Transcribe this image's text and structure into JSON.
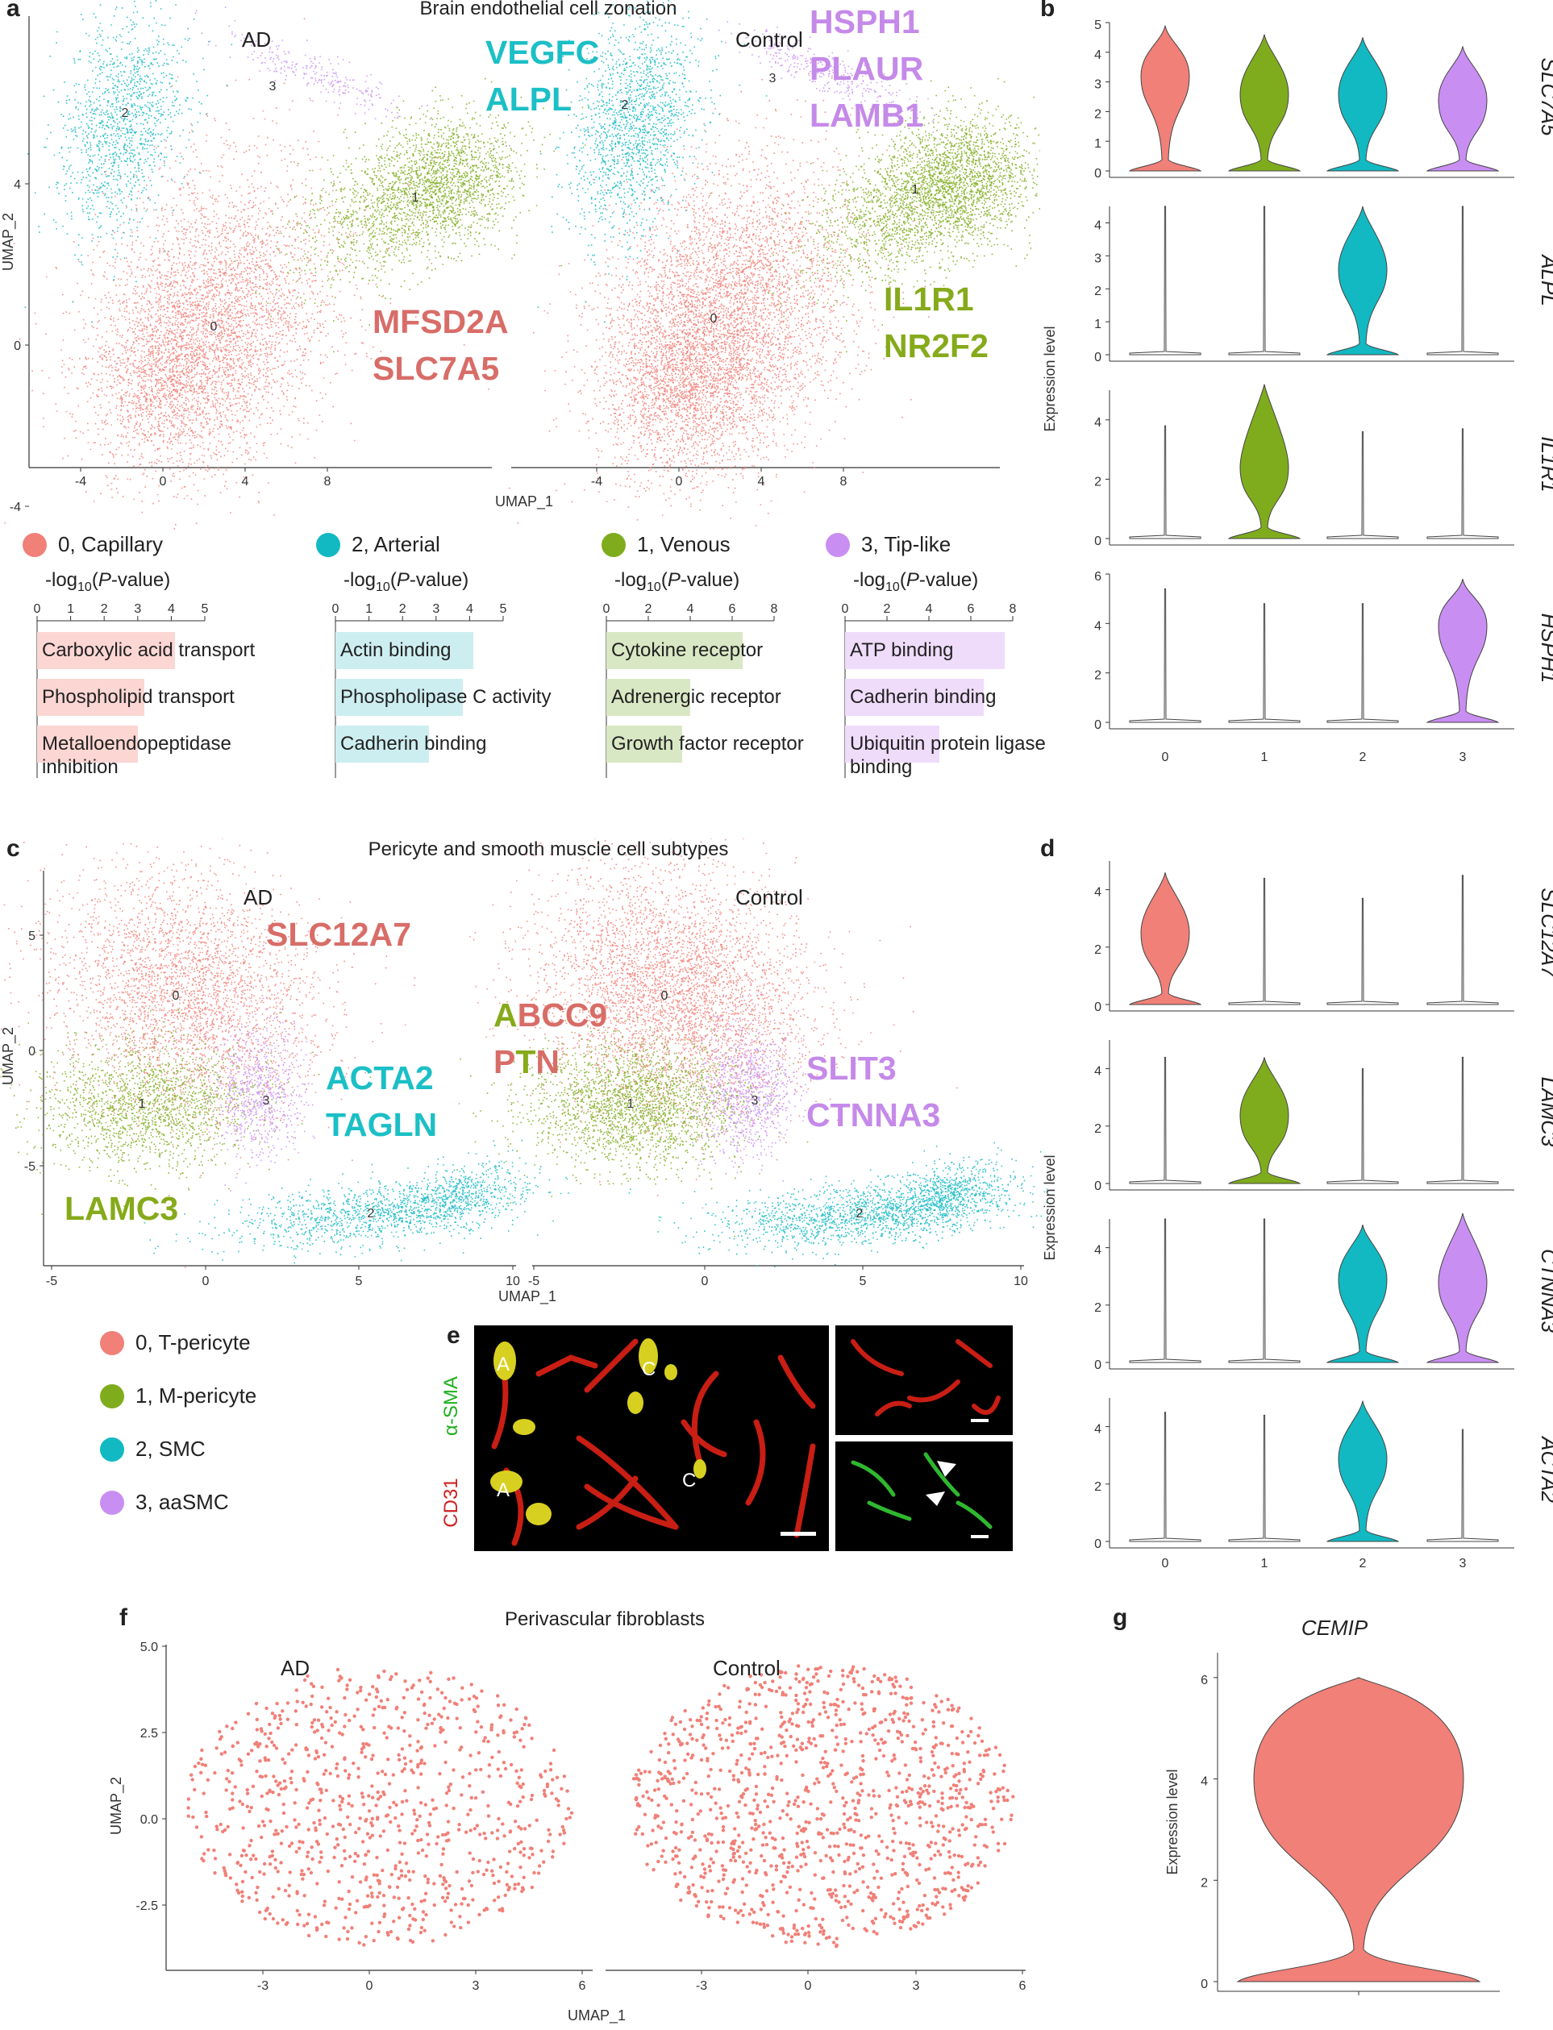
{
  "colors": {
    "c0": "#f08078",
    "c1": "#7fac1d",
    "c2": "#12b9c2",
    "c3": "#c98ef2",
    "c0_text": "#d86d68",
    "c1_text": "#86aa1a",
    "c2_text": "#1cbfc6",
    "c3_text": "#c58ae9"
  },
  "panel_a": {
    "label": "a",
    "title": "Brain endothelial cell zonation",
    "conditions": [
      "AD",
      "Control"
    ],
    "xlabel": "UMAP_1",
    "ylabel": "UMAP_2",
    "xticks": [
      "-4",
      "0",
      "4",
      "8"
    ],
    "yticks": [
      "4",
      "0",
      "-4"
    ],
    "clusters": [
      "0",
      "1",
      "2",
      "3"
    ],
    "markers": {
      "c2": [
        "VEGFC",
        "ALPL"
      ],
      "c3": [
        "HSPH1",
        "PLAUR",
        "LAMB1"
      ],
      "c0": [
        "MFSD2A",
        "SLC7A5"
      ],
      "c1": [
        "IL1R1",
        "NR2F2"
      ]
    },
    "legend": [
      "0, Capillary",
      "2, Arterial",
      "1, Venous",
      "3, Tip-like"
    ],
    "go_axis_prefix": "-log",
    "go_axis_sub": "10",
    "go_axis_open": "(",
    "go_axis_P": "P",
    "go_axis_suffix": "-value)",
    "go": [
      {
        "ticks": [
          "0",
          "1",
          "2",
          "3",
          "4",
          "5"
        ],
        "max": 5,
        "terms": [
          {
            "label": "Carboxylic acid transport",
            "value": 4.1
          },
          {
            "label": "Phospholipid transport",
            "value": 3.2
          },
          {
            "label": "Metalloendopeptidase inhibition",
            "value": 3.0
          }
        ]
      },
      {
        "ticks": [
          "0",
          "1",
          "2",
          "3",
          "4",
          "5"
        ],
        "max": 5,
        "terms": [
          {
            "label": "Actin binding",
            "value": 4.1
          },
          {
            "label": "Phospholipase C activity",
            "value": 3.8
          },
          {
            "label": "Cadherin binding",
            "value": 2.8
          }
        ]
      },
      {
        "ticks": [
          "0",
          "2",
          "4",
          "6",
          "8"
        ],
        "max": 8,
        "terms": [
          {
            "label": "Cytokine receptor",
            "value": 6.5
          },
          {
            "label": "Adrenergic receptor",
            "value": 4.0
          },
          {
            "label": "Growth factor receptor",
            "value": 3.6
          }
        ]
      },
      {
        "ticks": [
          "0",
          "2",
          "4",
          "6",
          "8"
        ],
        "max": 8,
        "terms": [
          {
            "label": "ATP binding",
            "value": 7.6
          },
          {
            "label": "Cadherin binding",
            "value": 6.6
          },
          {
            "label": "Ubiquitin protein ligase binding",
            "value": 4.5
          }
        ]
      }
    ]
  },
  "panel_b": {
    "label": "b",
    "ylabel": "Expression level",
    "xticks": [
      "0",
      "1",
      "2",
      "3"
    ],
    "genes": [
      {
        "name": "SLC7A5",
        "yticks": [
          "5",
          "4",
          "3",
          "2",
          "1",
          "0"
        ],
        "ymax": 5
      },
      {
        "name": "ALPL",
        "yticks": [
          "4",
          "3",
          "2",
          "1",
          "0"
        ],
        "ymax": 4.5
      },
      {
        "name": "IL1R1",
        "yticks": [
          "4",
          "2",
          "0"
        ],
        "ymax": 5
      },
      {
        "name": "HSPH1",
        "yticks": [
          "6",
          "4",
          "2",
          "0"
        ],
        "ymax": 6
      }
    ]
  },
  "panel_c": {
    "label": "c",
    "title": "Pericyte and smooth muscle cell subtypes",
    "conditions": [
      "AD",
      "Control"
    ],
    "xlabel": "UMAP_1",
    "ylabel": "UMAP_2",
    "xticks": [
      "-5",
      "0",
      "5",
      "10"
    ],
    "yticks": [
      "5",
      "0",
      "-5"
    ],
    "markers": {
      "c0": [
        "SLC12A7"
      ],
      "c2": [
        "ACTA2",
        "TAGLN"
      ],
      "c1": [
        "LAMC3"
      ],
      "c3": [
        "SLIT3",
        "CTNNA3"
      ]
    },
    "abcc9": [
      "A",
      "BCC9"
    ],
    "ptn": [
      "P",
      "T",
      "N"
    ],
    "legend": [
      "0, T-pericyte",
      "1, M-pericyte",
      "2, SMC",
      "3, aaSMC"
    ]
  },
  "panel_d": {
    "label": "d",
    "ylabel": "Expression level",
    "xticks": [
      "0",
      "1",
      "2",
      "3"
    ],
    "genes": [
      {
        "name": "SLC12A7",
        "yticks": [
          "4",
          "2",
          "0"
        ],
        "ymax": 5
      },
      {
        "name": "LAMC3",
        "yticks": [
          "4",
          "2",
          "0"
        ],
        "ymax": 5
      },
      {
        "name": "CTNNA3",
        "yticks": [
          "4",
          "2",
          "0"
        ],
        "ymax": 5
      },
      {
        "name": "ACTA2",
        "yticks": [
          "4",
          "2",
          "0"
        ],
        "ymax": 5
      }
    ]
  },
  "panel_e": {
    "label": "e",
    "stain_green": "α-SMA",
    "stain_red": "CD31",
    "annot": [
      "A",
      "C",
      "A",
      "C"
    ]
  },
  "panel_f": {
    "label": "f",
    "title": "Perivascular fibroblasts",
    "conditions": [
      "AD",
      "Control"
    ],
    "xlabel": "UMAP_1",
    "ylabel": "UMAP_2",
    "xticks": [
      "-3",
      "0",
      "3",
      "6"
    ],
    "yticks": [
      "5.0",
      "2.5",
      "0.0",
      "-2.5"
    ]
  },
  "panel_g": {
    "label": "g",
    "title": "CEMIP",
    "ylabel": "Expression level",
    "yticks": [
      "6",
      "4",
      "2",
      "0"
    ]
  },
  "chart_data": [
    {
      "type": "violin",
      "panel": "b",
      "categories": [
        "0",
        "1",
        "2",
        "3"
      ],
      "series": [
        {
          "name": "SLC7A5",
          "modes": [
            3.2,
            2.6,
            2.6,
            2.4
          ],
          "max": [
            4.9,
            4.6,
            4.5,
            4.2
          ]
        },
        {
          "name": "ALPL",
          "modes": [
            0,
            0,
            2.6,
            0
          ],
          "max": [
            4.5,
            4.5,
            4.5,
            4.5
          ]
        },
        {
          "name": "IL1R1",
          "modes": [
            0,
            2.4,
            0,
            0
          ],
          "max": [
            3.8,
            5.2,
            3.6,
            3.7
          ]
        },
        {
          "name": "HSPH1",
          "modes": [
            0,
            0,
            0,
            3.9
          ],
          "max": [
            5.4,
            4.8,
            4.8,
            5.8
          ]
        }
      ]
    },
    {
      "type": "violin",
      "panel": "d",
      "categories": [
        "0",
        "1",
        "2",
        "3"
      ],
      "series": [
        {
          "name": "SLC12A7",
          "modes": [
            2.5,
            0,
            0,
            0
          ],
          "max": [
            4.6,
            4.4,
            3.7,
            4.5
          ]
        },
        {
          "name": "LAMC3",
          "modes": [
            0,
            2.4,
            0,
            0
          ],
          "max": [
            4.4,
            4.4,
            4.0,
            4.4
          ]
        },
        {
          "name": "CTNNA3",
          "modes": [
            0,
            0,
            2.9,
            2.8
          ],
          "max": [
            5.0,
            5.0,
            4.8,
            5.2
          ]
        },
        {
          "name": "ACTA2",
          "modes": [
            0,
            0,
            2.9,
            0
          ],
          "max": [
            4.5,
            4.4,
            4.9,
            3.9
          ]
        }
      ]
    },
    {
      "type": "violin",
      "panel": "g",
      "categories": [
        ""
      ],
      "series": [
        {
          "name": "CEMIP",
          "modes": [
            4.0
          ],
          "max": [
            6.0
          ]
        }
      ]
    }
  ]
}
